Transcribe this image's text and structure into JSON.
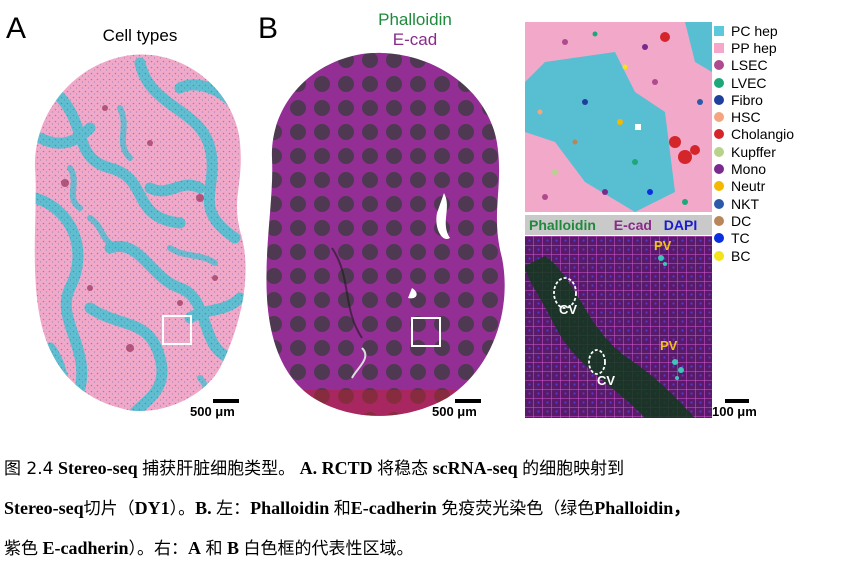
{
  "panel_a": {
    "letter": "A",
    "title": "Cell types",
    "scale_label": "500 μm"
  },
  "panel_b": {
    "letter": "B",
    "title_line1": "Phalloidin",
    "title_line2": "E-cad",
    "scale_label": "500 μm"
  },
  "right_panel": {
    "stain_labels": [
      "Phalloidin",
      "E-cad",
      "DAPI"
    ],
    "pv_label": "PV",
    "cv_label": "CV",
    "scale_label": "100 μm"
  },
  "legend": {
    "items": [
      {
        "label": "PC hep",
        "color": "#5bc8dc",
        "shape": "square"
      },
      {
        "label": "PP hep",
        "color": "#f6a6c9",
        "shape": "square"
      },
      {
        "label": "LSEC",
        "color": "#b04a8e",
        "shape": "circle"
      },
      {
        "label": "LVEC",
        "color": "#1ea77a",
        "shape": "circle"
      },
      {
        "label": "Fibro",
        "color": "#1f3f9c",
        "shape": "circle"
      },
      {
        "label": "HSC",
        "color": "#f3a57f",
        "shape": "circle"
      },
      {
        "label": "Cholangio",
        "color": "#d4252a",
        "shape": "circle"
      },
      {
        "label": "Kupffer",
        "color": "#b8d28b",
        "shape": "circle"
      },
      {
        "label": "Mono",
        "color": "#7a2a8c",
        "shape": "circle"
      },
      {
        "label": "Neutr",
        "color": "#f5b800",
        "shape": "circle"
      },
      {
        "label": "NKT",
        "color": "#2d5aa8",
        "shape": "circle"
      },
      {
        "label": "DC",
        "color": "#b8865a",
        "shape": "circle"
      },
      {
        "label": "TC",
        "color": "#0a2fe0",
        "shape": "circle"
      },
      {
        "label": "BC",
        "color": "#f2e31b",
        "shape": "circle"
      }
    ]
  },
  "caption": {
    "l1_figno": "图 2.4",
    "l1_a": "Stereo-seq",
    "l1_b": "捕获肝脏细胞类型。",
    "l1_c": "A. RCTD",
    "l1_d": "将稳态",
    "l1_e": "scRNA-seq",
    "l1_f": "的细胞映射到",
    "l2_a": "Stereo-seq",
    "l2_b": "切片（",
    "l2_c": "DY1",
    "l2_d": "）。",
    "l2_e": "B.",
    "l2_f": "左：",
    "l2_g": "Phalloidin",
    "l2_h": "和",
    "l2_i": "E-cadherin",
    "l2_j": "免疫荧光染色（绿色",
    "l2_k": "Phalloidin，",
    "l3_a": "紫色",
    "l3_b": "E-cadherin",
    "l3_c": "）。右：",
    "l3_d": "A",
    "l3_e": "和",
    "l3_f": "B",
    "l3_g": "白色框的代表性区域。"
  },
  "colors": {
    "pc_hep": "#5bc8dc",
    "pp_hep": "#f6a6c9",
    "phalloidin_green": "#1f8a3c",
    "ecad_purple": "#8a2a8a",
    "dapi_blue": "#1a1ad0"
  }
}
